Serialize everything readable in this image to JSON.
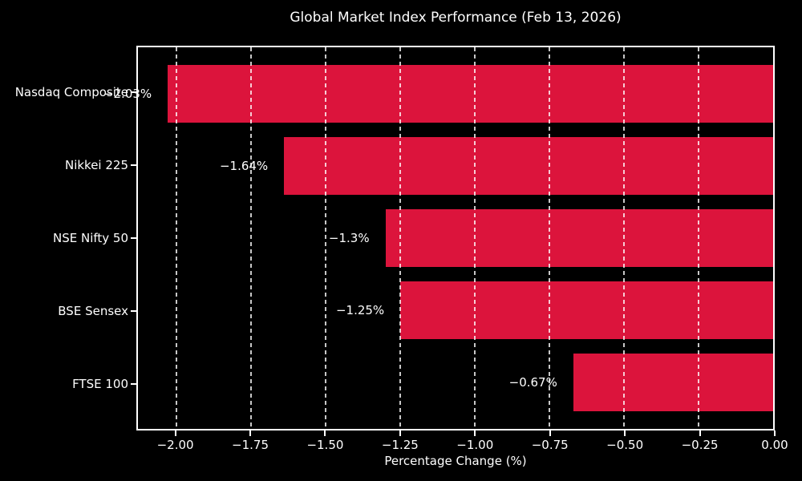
{
  "chart_data": {
    "type": "bar",
    "orientation": "horizontal",
    "title": "Global Market Index Performance (Feb 13, 2026)",
    "categories": [
      "Nasdaq Composite",
      "Nikkei 225",
      "NSE Nifty 50",
      "BSE Sensex",
      "FTSE 100"
    ],
    "values": [
      -2.03,
      -1.64,
      -1.3,
      -1.25,
      -0.67
    ],
    "value_labels": [
      "−2.03%",
      "−1.64%",
      "−1.3%",
      "−1.25%",
      "−0.67%"
    ],
    "xlabel": "Percentage Change (%)",
    "ylabel": "",
    "xlim": [
      -2.13,
      0
    ],
    "xticks": [
      -2.0,
      -1.75,
      -1.5,
      -1.25,
      -1.0,
      -0.75,
      -0.5,
      -0.25,
      0.0
    ],
    "xtick_labels": [
      "−2.00",
      "−1.75",
      "−1.50",
      "−1.25",
      "−1.00",
      "−0.75",
      "−0.50",
      "−0.25",
      "0.00"
    ],
    "grid": true,
    "grid_style": "dashed-vertical-above-bars",
    "legend": "none",
    "colors": {
      "background": "#000000",
      "bar": "#DC143C",
      "text": "#FFFFFF",
      "grid": "rgba(255,255,255,0.78)",
      "spine": "#FFFFFF"
    }
  }
}
